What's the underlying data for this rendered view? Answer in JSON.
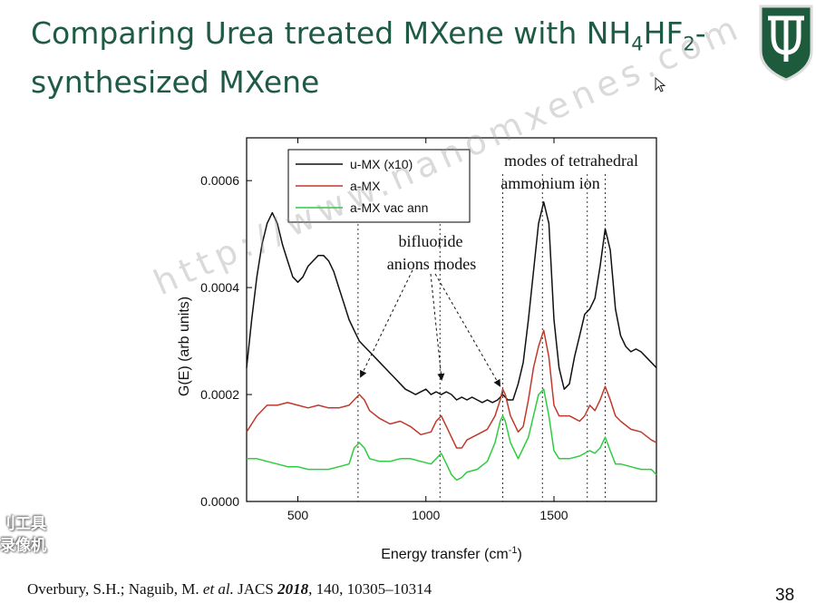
{
  "slide": {
    "title_line1_a": "Comparing Urea treated MXene with NH",
    "title_sub1": "4",
    "title_line1_b": "HF",
    "title_sub2": "2",
    "title_line1_c": "-",
    "title_line2": "synthesized MXene",
    "citation_authors": "Overbury, S.H.; Naguib, M. ",
    "citation_etal": "et al.",
    "citation_journal": " JACS ",
    "citation_year": "2018",
    "citation_rest": ", 140, 10305–10314",
    "slide_number": "38",
    "watermark_diagonal": "http://www.nanomxenes.com",
    "watermark_left_line1": "刂工具",
    "watermark_left_line2": "录像机"
  },
  "colors": {
    "title": "#1f5a44",
    "logo_green": "#1e5a3c",
    "u_mx": "#111111",
    "a_mx": "#c0392b",
    "a_mx_vac": "#2ecc40"
  },
  "icons": {
    "logo": "university-shield-logo",
    "cursor": "mouse-pointer-icon"
  },
  "chart_data": {
    "type": "line",
    "xlabel": "Energy transfer (cm",
    "xlabel_sup": "-1",
    "xlabel_end": ")",
    "ylabel": "G(E)  (arb units)",
    "xlim": [
      300,
      1900
    ],
    "ylim": [
      0,
      0.00068
    ],
    "xticks": [
      500,
      1000,
      1500
    ],
    "xtick_labels": [
      "500",
      "1000",
      "1500"
    ],
    "yticks": [
      0,
      0.0002,
      0.0004,
      0.0006
    ],
    "ytick_labels": [
      "0.0000",
      "0.0002",
      "0.0004",
      "0.0006"
    ],
    "grid": false,
    "legend_position": "top-left",
    "series": [
      {
        "name": "u-MX (x10)",
        "color": "#111111",
        "x": [
          300,
          320,
          340,
          360,
          380,
          400,
          420,
          440,
          460,
          480,
          500,
          520,
          540,
          560,
          580,
          600,
          620,
          640,
          660,
          680,
          700,
          720,
          740,
          760,
          780,
          800,
          820,
          840,
          860,
          880,
          900,
          920,
          940,
          960,
          980,
          1000,
          1020,
          1040,
          1060,
          1080,
          1100,
          1120,
          1140,
          1160,
          1180,
          1200,
          1220,
          1240,
          1260,
          1280,
          1300,
          1320,
          1340,
          1360,
          1380,
          1400,
          1420,
          1440,
          1460,
          1480,
          1500,
          1520,
          1540,
          1560,
          1580,
          1600,
          1620,
          1640,
          1660,
          1680,
          1700,
          1720,
          1740,
          1760,
          1780,
          1800,
          1820,
          1840,
          1860,
          1880,
          1900
        ],
        "y": [
          0.00025,
          0.00034,
          0.00042,
          0.00048,
          0.00052,
          0.00054,
          0.00052,
          0.00048,
          0.00045,
          0.00042,
          0.00041,
          0.00042,
          0.00044,
          0.00045,
          0.00046,
          0.00046,
          0.00045,
          0.00043,
          0.0004,
          0.00037,
          0.00034,
          0.00032,
          0.0003,
          0.00029,
          0.00028,
          0.00027,
          0.00026,
          0.00025,
          0.00024,
          0.00023,
          0.00022,
          0.00021,
          0.000205,
          0.0002,
          0.000205,
          0.00021,
          0.0002,
          0.000205,
          0.0002,
          0.000205,
          0.0002,
          0.00019,
          0.000195,
          0.00019,
          0.000195,
          0.00019,
          0.000185,
          0.00019,
          0.000185,
          0.00019,
          0.0002,
          0.00019,
          0.00019,
          0.00022,
          0.00026,
          0.00034,
          0.00043,
          0.00052,
          0.00056,
          0.00052,
          0.00034,
          0.00025,
          0.00021,
          0.00022,
          0.00027,
          0.00031,
          0.00035,
          0.00036,
          0.00038,
          0.00044,
          0.00051,
          0.00047,
          0.00036,
          0.00031,
          0.00029,
          0.00028,
          0.000285,
          0.00028,
          0.00027,
          0.00026,
          0.00025
        ]
      },
      {
        "name": "a-MX",
        "color": "#c0392b",
        "x": [
          300,
          340,
          380,
          420,
          460,
          500,
          540,
          580,
          620,
          660,
          700,
          720,
          740,
          760,
          780,
          820,
          860,
          900,
          940,
          980,
          1020,
          1040,
          1060,
          1080,
          1100,
          1120,
          1140,
          1160,
          1200,
          1240,
          1270,
          1290,
          1300,
          1310,
          1330,
          1360,
          1380,
          1400,
          1420,
          1440,
          1460,
          1480,
          1500,
          1520,
          1560,
          1600,
          1620,
          1640,
          1660,
          1680,
          1700,
          1720,
          1740,
          1760,
          1800,
          1840,
          1880,
          1900
        ],
        "y": [
          0.00013,
          0.00016,
          0.00018,
          0.00018,
          0.000185,
          0.00018,
          0.000175,
          0.00018,
          0.000175,
          0.000175,
          0.00018,
          0.00019,
          0.0002,
          0.00019,
          0.00017,
          0.000155,
          0.000145,
          0.00015,
          0.00014,
          0.000125,
          0.00013,
          0.00015,
          0.00016,
          0.00014,
          0.00012,
          0.0001,
          0.0001,
          0.000115,
          0.000125,
          0.000135,
          0.00016,
          0.00019,
          0.00021,
          0.0002,
          0.00016,
          0.00013,
          0.00014,
          0.00019,
          0.00025,
          0.00029,
          0.00032,
          0.00027,
          0.00018,
          0.00016,
          0.00016,
          0.00015,
          0.00016,
          0.00018,
          0.00017,
          0.00019,
          0.000215,
          0.00019,
          0.00016,
          0.00015,
          0.000135,
          0.00013,
          0.000115,
          0.00011
        ]
      },
      {
        "name": "a-MX vac ann",
        "color": "#2ecc40",
        "x": [
          300,
          340,
          380,
          420,
          460,
          500,
          540,
          580,
          620,
          660,
          700,
          720,
          740,
          760,
          780,
          820,
          860,
          900,
          940,
          980,
          1020,
          1040,
          1060,
          1080,
          1100,
          1120,
          1140,
          1160,
          1200,
          1240,
          1270,
          1290,
          1300,
          1310,
          1330,
          1360,
          1380,
          1400,
          1420,
          1440,
          1460,
          1480,
          1500,
          1520,
          1560,
          1600,
          1620,
          1640,
          1660,
          1680,
          1700,
          1720,
          1740,
          1760,
          1800,
          1840,
          1880,
          1900
        ],
        "y": [
          8e-05,
          8e-05,
          7.5e-05,
          7e-05,
          6.5e-05,
          6.5e-05,
          6e-05,
          6e-05,
          6e-05,
          6.5e-05,
          7e-05,
          0.0001,
          0.00011,
          0.0001,
          8e-05,
          7.5e-05,
          7.5e-05,
          8e-05,
          8e-05,
          7.5e-05,
          7e-05,
          8e-05,
          9e-05,
          7e-05,
          5e-05,
          4e-05,
          4.5e-05,
          5.5e-05,
          6e-05,
          7.5e-05,
          0.00011,
          0.00015,
          0.00016,
          0.00015,
          0.00011,
          8e-05,
          0.0001,
          0.00012,
          0.00016,
          0.0002,
          0.00021,
          0.00016,
          9.5e-05,
          8e-05,
          8e-05,
          8.5e-05,
          9e-05,
          9.5e-05,
          9e-05,
          0.0001,
          0.00012,
          9.5e-05,
          7e-05,
          7e-05,
          6.5e-05,
          6e-05,
          6e-05,
          5e-05
        ]
      }
    ],
    "reference_lines_x": [
      735,
      1055,
      1300,
      1455,
      1630,
      1700
    ],
    "annotations": [
      {
        "label": "bifluoride",
        "label2": "anions modes",
        "targets_x": [
          735,
          1055,
          1300
        ]
      },
      {
        "label": "modes of tetrahedral",
        "label2": "ammonium ion"
      }
    ]
  }
}
